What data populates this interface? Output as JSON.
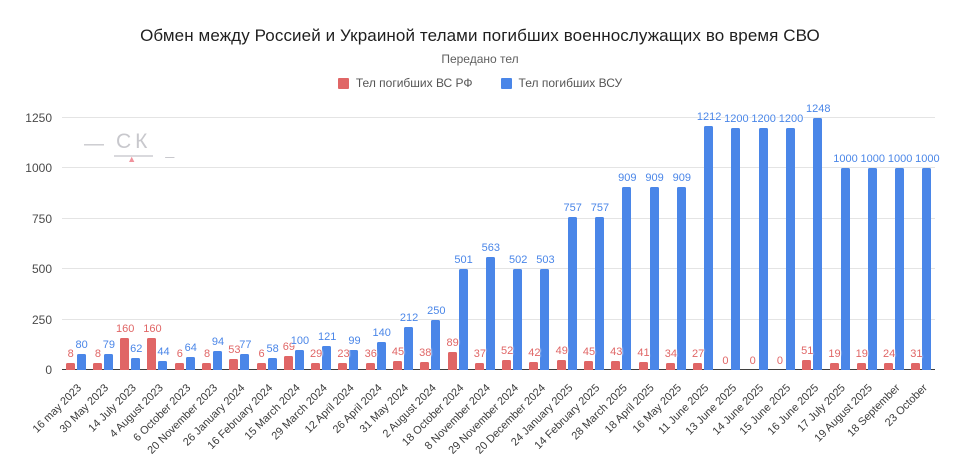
{
  "title": "Обмен между Россией и Украиной телами погибших военнослужащих во время СВО",
  "subtitle": "Передано тел",
  "watermark": {
    "dash": "—",
    "text": "СК",
    "underscore": "_"
  },
  "colors": {
    "rf_red": "#e06666",
    "vsu_blue": "#4a86e8",
    "grid": "#e4e4e4",
    "axis": "#3f3f3f"
  },
  "legend": [
    {
      "label": "Тел погибших ВС  РФ",
      "color": "#e06666"
    },
    {
      "label": "Тел погибших ВСУ",
      "color": "#4a86e8"
    }
  ],
  "chart_data": {
    "type": "bar",
    "title": "Обмен между Россией и Украиной телами погибших военнослужащих во время СВО",
    "subtitle": "Передано тел",
    "categories": [
      "16 may 2023",
      "30 May 2023",
      "14 July 2023",
      "4 August 2023",
      "6 October 2023",
      "20 November 2023",
      "26 January 2024",
      "16 February 2024",
      "15 March 2024",
      "29 March 2024",
      "12 April 2024",
      "26 April 2024",
      "31 May 2024",
      "2 August 2024",
      "18 October 2024",
      "8 November 2024",
      "29 November 2024",
      "20 December 2024",
      "24 January 2025",
      "14 February 2025",
      "28 March 2025",
      "18 April 2025",
      "16 May 2025",
      "11 June 2025",
      "13 June 2025",
      "14 June 2025",
      "15 June 2025",
      "16 June 2025",
      "17 July 2025",
      "19 August 2025",
      "18 September",
      "23 October"
    ],
    "series": [
      {
        "name": "Тел погибших ВС  РФ",
        "color": "#e06666",
        "values": [
          8,
          8,
          160,
          160,
          6,
          8,
          53,
          6,
          69,
          29,
          23,
          36,
          45,
          38,
          89,
          37,
          52,
          42,
          49,
          45,
          43,
          41,
          34,
          27,
          0,
          0,
          0,
          51,
          19,
          19,
          24,
          31
        ]
      },
      {
        "name": "Тел погибших ВСУ",
        "color": "#4a86e8",
        "values": [
          80,
          79,
          62,
          44,
          64,
          94,
          77,
          58,
          100,
          121,
          99,
          140,
          212,
          250,
          501,
          563,
          502,
          503,
          757,
          757,
          909,
          909,
          909,
          1212,
          1200,
          1200,
          1200,
          1248,
          1000,
          1000,
          1000,
          1000
        ]
      }
    ],
    "y_ticks": [
      0,
      250,
      500,
      750,
      1000,
      1250
    ],
    "ylim": [
      0,
      1250
    ],
    "grid": true,
    "legend_position": "top",
    "data_labels": true,
    "xlabel": "",
    "ylabel": ""
  }
}
